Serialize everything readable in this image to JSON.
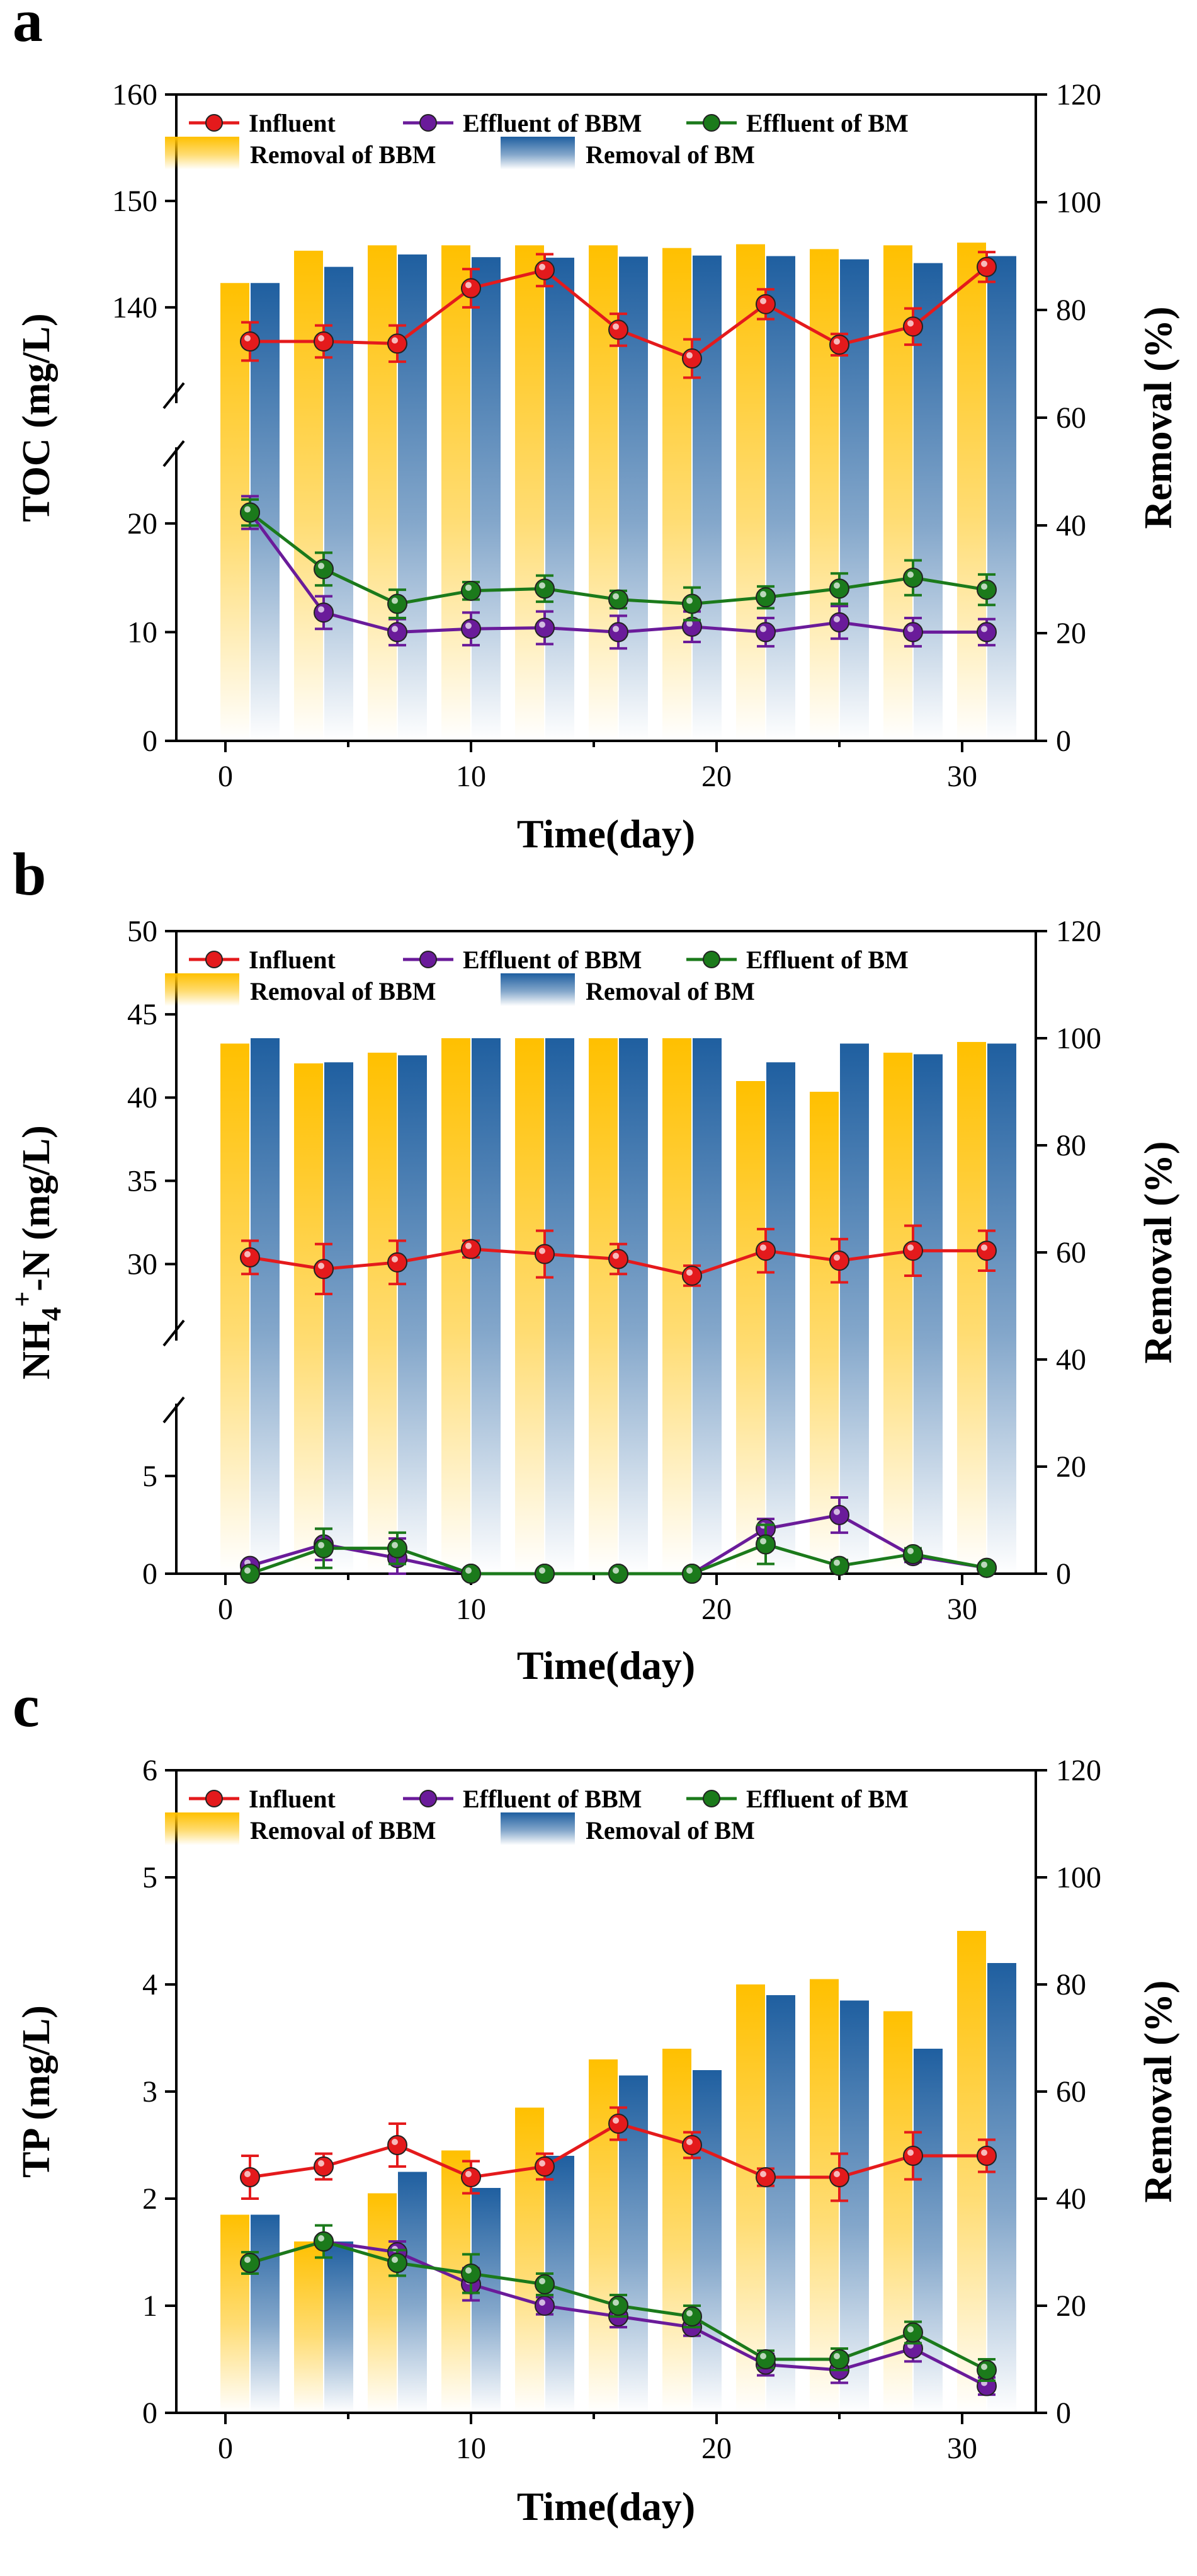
{
  "chart_data": [
    {
      "panel_label": "a",
      "type": "bar+line",
      "xlabel": "Time(day)",
      "ylabel": "TOC (mg/L)",
      "y2label": "Removal (%)",
      "xlim": [
        -2,
        33
      ],
      "xticks": [
        "0",
        "10",
        "20",
        "30"
      ],
      "ylim_lower": [
        0,
        27
      ],
      "ylim_upper": [
        131,
        160
      ],
      "yticks_lower": [
        "0",
        "10",
        "20"
      ],
      "yticks_upper": [
        "140",
        "150",
        "160"
      ],
      "y2lim": [
        0,
        120
      ],
      "y2ticks": [
        "0",
        "20",
        "40",
        "60",
        "80",
        "100",
        "120"
      ],
      "axis_break": true,
      "legend_position": "top",
      "x": [
        1,
        4,
        7,
        10,
        13,
        16,
        19,
        22,
        25,
        28,
        31
      ],
      "bars": [
        {
          "name": "Removal of BBM",
          "color": "#FFC000",
          "values": [
            85,
            91,
            92,
            92,
            92,
            92,
            91.5,
            92.2,
            91.3,
            92,
            92.5
          ]
        },
        {
          "name": "Removal of BM",
          "color": "#1F5FA0",
          "values": [
            85,
            88,
            90.3,
            89.8,
            89.7,
            89.9,
            90.1,
            90,
            89.4,
            88.7,
            90
          ]
        }
      ],
      "series": [
        {
          "name": "Influent",
          "color": "#E41A1C",
          "values": [
            136.8,
            136.8,
            136.6,
            141.8,
            143.5,
            137.9,
            135.2,
            140.3,
            136.5,
            138.2,
            143.8
          ],
          "errors": [
            1.8,
            1.5,
            1.7,
            1.8,
            1.5,
            1.5,
            1.8,
            1.4,
            1.0,
            1.7,
            1.4
          ]
        },
        {
          "name": "Effluent of BBM",
          "color": "#6A1B9A",
          "values": [
            21,
            11.8,
            10,
            10.3,
            10.4,
            10,
            10.5,
            10,
            10.9,
            10,
            10
          ],
          "errors": [
            1.5,
            1.5,
            1.2,
            1.5,
            1.5,
            1.5,
            1.4,
            1.3,
            1.5,
            1.3,
            1.2
          ]
        },
        {
          "name": "Effluent of BM",
          "color": "#1B7A1B",
          "values": [
            21,
            15.8,
            12.6,
            13.8,
            14,
            13,
            12.6,
            13.2,
            14,
            15,
            13.9
          ],
          "errors": [
            1.2,
            1.5,
            1.3,
            0.8,
            1.2,
            0.8,
            1.5,
            1.0,
            1.4,
            1.6,
            1.4
          ]
        }
      ]
    },
    {
      "panel_label": "b",
      "type": "bar+line",
      "xlabel": "Time(day)",
      "ylabel_main": "NH",
      "ylabel_sub": "4",
      "ylabel_sup": "+",
      "ylabel_tail": "-N (mg/L)",
      "y2label": "Removal (%)",
      "xlim": [
        -2,
        33
      ],
      "xticks": [
        "0",
        "10",
        "20",
        "30"
      ],
      "ylim_lower": [
        0,
        8.7
      ],
      "ylim_upper": [
        25.4,
        50
      ],
      "yticks_lower": [
        "0",
        "5"
      ],
      "yticks_upper": [
        "30",
        "35",
        "40",
        "45",
        "50"
      ],
      "y2lim": [
        0,
        120
      ],
      "y2ticks": [
        "0",
        "20",
        "40",
        "60",
        "80",
        "100",
        "120"
      ],
      "axis_break": true,
      "legend_position": "top",
      "x": [
        1,
        4,
        7,
        10,
        13,
        16,
        19,
        22,
        25,
        28,
        31
      ],
      "bars": [
        {
          "name": "Removal of BBM",
          "color": "#FFC000",
          "values": [
            99,
            95.3,
            97.3,
            100,
            100,
            100,
            100,
            92,
            90,
            97.3,
            99.3
          ]
        },
        {
          "name": "Removal of BM",
          "color": "#1F5FA0",
          "values": [
            100,
            95.5,
            96.8,
            100,
            100,
            100,
            100,
            95.5,
            99,
            97,
            99
          ]
        }
      ],
      "series": [
        {
          "name": "Influent",
          "color": "#E41A1C",
          "values": [
            30.4,
            29.7,
            30.1,
            30.9,
            30.6,
            30.3,
            29.3,
            30.8,
            30.2,
            30.8,
            30.8
          ],
          "errors": [
            1.0,
            1.5,
            1.3,
            0.5,
            1.4,
            0.9,
            0.6,
            1.3,
            1.3,
            1.5,
            1.2
          ]
        },
        {
          "name": "Effluent of BBM",
          "color": "#6A1B9A",
          "values": [
            0.4,
            1.5,
            0.8,
            0,
            0,
            0,
            0,
            2.3,
            3,
            0.9,
            0.3
          ],
          "errors": [
            0.2,
            0.8,
            1.0,
            0.1,
            0.1,
            0.1,
            0.1,
            0.5,
            0.9,
            0.3,
            0.2
          ]
        },
        {
          "name": "Effluent of BM",
          "color": "#1B7A1B",
          "values": [
            0,
            1.3,
            1.3,
            0,
            0,
            0,
            0,
            1.5,
            0.4,
            1,
            0.3
          ],
          "errors": [
            0.1,
            1.0,
            0.8,
            0.1,
            0.1,
            0.1,
            0.1,
            1.0,
            0.3,
            0.3,
            0.2
          ]
        }
      ]
    },
    {
      "panel_label": "c",
      "type": "bar+line",
      "xlabel": "Time(day)",
      "ylabel": "TP (mg/L)",
      "y2label": "Removal (%)",
      "xlim": [
        -2,
        33
      ],
      "xticks": [
        "0",
        "10",
        "20",
        "30"
      ],
      "ylim": [
        0,
        6
      ],
      "yticks": [
        "0",
        "1",
        "2",
        "3",
        "4",
        "5",
        "6"
      ],
      "y2lim": [
        0,
        120
      ],
      "y2ticks": [
        "0",
        "20",
        "40",
        "60",
        "80",
        "100",
        "120"
      ],
      "axis_break": false,
      "legend_position": "top",
      "x": [
        1,
        4,
        7,
        10,
        13,
        16,
        19,
        22,
        25,
        28,
        31
      ],
      "bars": [
        {
          "name": "Removal of BBM",
          "color": "#FFC000",
          "values": [
            37,
            32,
            41,
            49,
            57,
            66,
            68,
            80,
            81,
            75,
            90
          ]
        },
        {
          "name": "Removal of BM",
          "color": "#1F5FA0",
          "values": [
            37,
            32,
            45,
            42,
            48,
            63,
            64,
            78,
            77,
            68,
            84
          ]
        }
      ],
      "series": [
        {
          "name": "Influent",
          "color": "#E41A1C",
          "values": [
            2.2,
            2.3,
            2.5,
            2.2,
            2.3,
            2.7,
            2.5,
            2.2,
            2.2,
            2.4,
            2.4
          ],
          "errors": [
            0.2,
            0.12,
            0.2,
            0.15,
            0.12,
            0.15,
            0.12,
            0.08,
            0.22,
            0.22,
            0.15
          ]
        },
        {
          "name": "Effluent of BBM",
          "color": "#6A1B9A",
          "values": [
            1.4,
            1.6,
            1.5,
            1.2,
            1,
            0.9,
            0.8,
            0.45,
            0.4,
            0.6,
            0.25
          ],
          "errors": [
            0.1,
            0.15,
            0.1,
            0.15,
            0.08,
            0.1,
            0.08,
            0.1,
            0.12,
            0.12,
            0.08
          ]
        },
        {
          "name": "Effluent of BM",
          "color": "#1B7A1B",
          "values": [
            1.4,
            1.6,
            1.4,
            1.3,
            1.2,
            1,
            0.9,
            0.5,
            0.5,
            0.75,
            0.4
          ],
          "errors": [
            0.1,
            0.15,
            0.12,
            0.18,
            0.1,
            0.1,
            0.1,
            0.08,
            0.1,
            0.1,
            0.1
          ]
        }
      ]
    }
  ]
}
